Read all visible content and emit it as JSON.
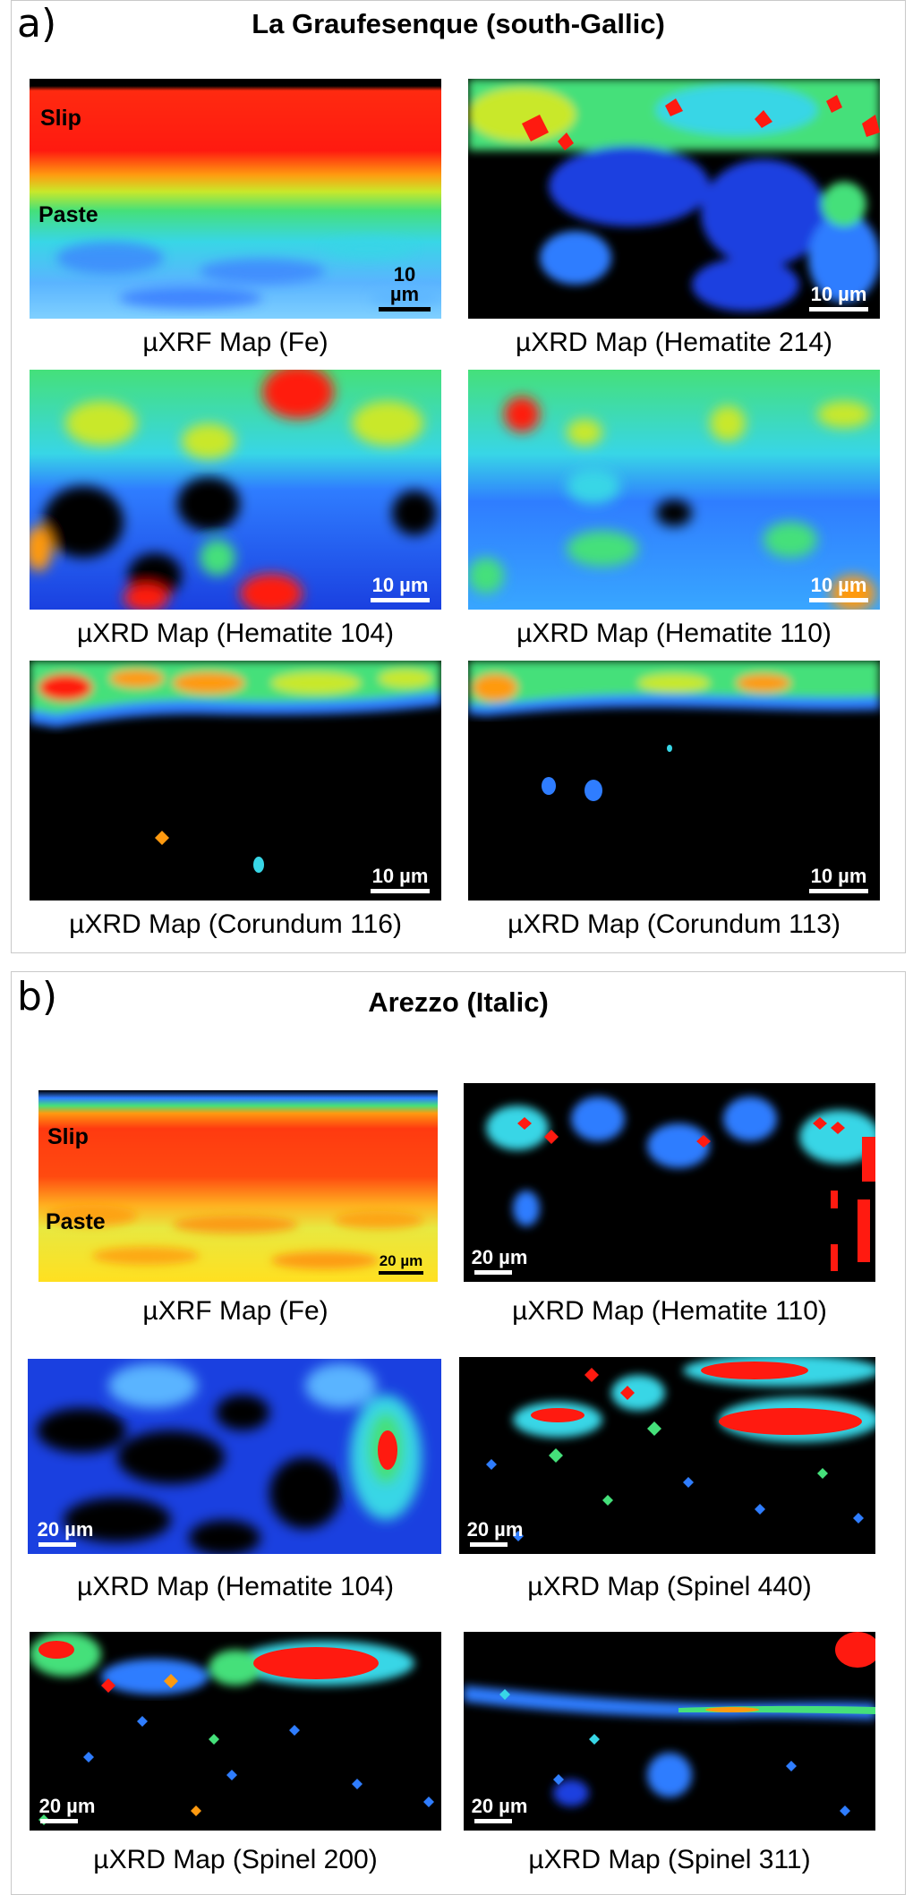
{
  "panel_a": {
    "letter": "a)",
    "title": "La Graufesenque (south-Gallic)",
    "maps": [
      {
        "caption": "µXRF Map (Fe)",
        "scale": "10 µm",
        "labels": [
          "Slip",
          "Paste"
        ]
      },
      {
        "caption": "µXRD Map (Hematite 214)",
        "scale": "10 µm"
      },
      {
        "caption": "µXRD Map (Hematite 104)",
        "scale": "10 µm"
      },
      {
        "caption": "µXRD Map (Hematite 110)",
        "scale": "10 µm"
      },
      {
        "caption": "µXRD Map (Corundum 116)",
        "scale": "10 µm"
      },
      {
        "caption": "µXRD Map (Corundum 113)",
        "scale": "10 µm"
      }
    ]
  },
  "panel_b": {
    "letter": "b)",
    "title": "Arezzo (Italic)",
    "maps": [
      {
        "caption": "µXRF Map (Fe)",
        "scale": "20 µm",
        "labels": [
          "Slip",
          "Paste"
        ]
      },
      {
        "caption": "µXRD Map (Hematite 110)",
        "scale": "20 µm"
      },
      {
        "caption": "µXRD Map (Hematite 104)",
        "scale": "20 µm"
      },
      {
        "caption": "µXRD Map (Spinel 440)",
        "scale": "20 µm"
      },
      {
        "caption": "µXRD Map (Spinel 200)",
        "scale": "20 µm"
      },
      {
        "caption": "µXRD Map (Spinel 311)",
        "scale": "20 µm"
      }
    ]
  },
  "colors": {
    "colormap": [
      "#000000",
      "#0a1fd8",
      "#2f7dff",
      "#38d6e6",
      "#45e07a",
      "#c9e82a",
      "#ff9a10",
      "#ff1a10"
    ],
    "panel_border": "#c9c9c9"
  }
}
